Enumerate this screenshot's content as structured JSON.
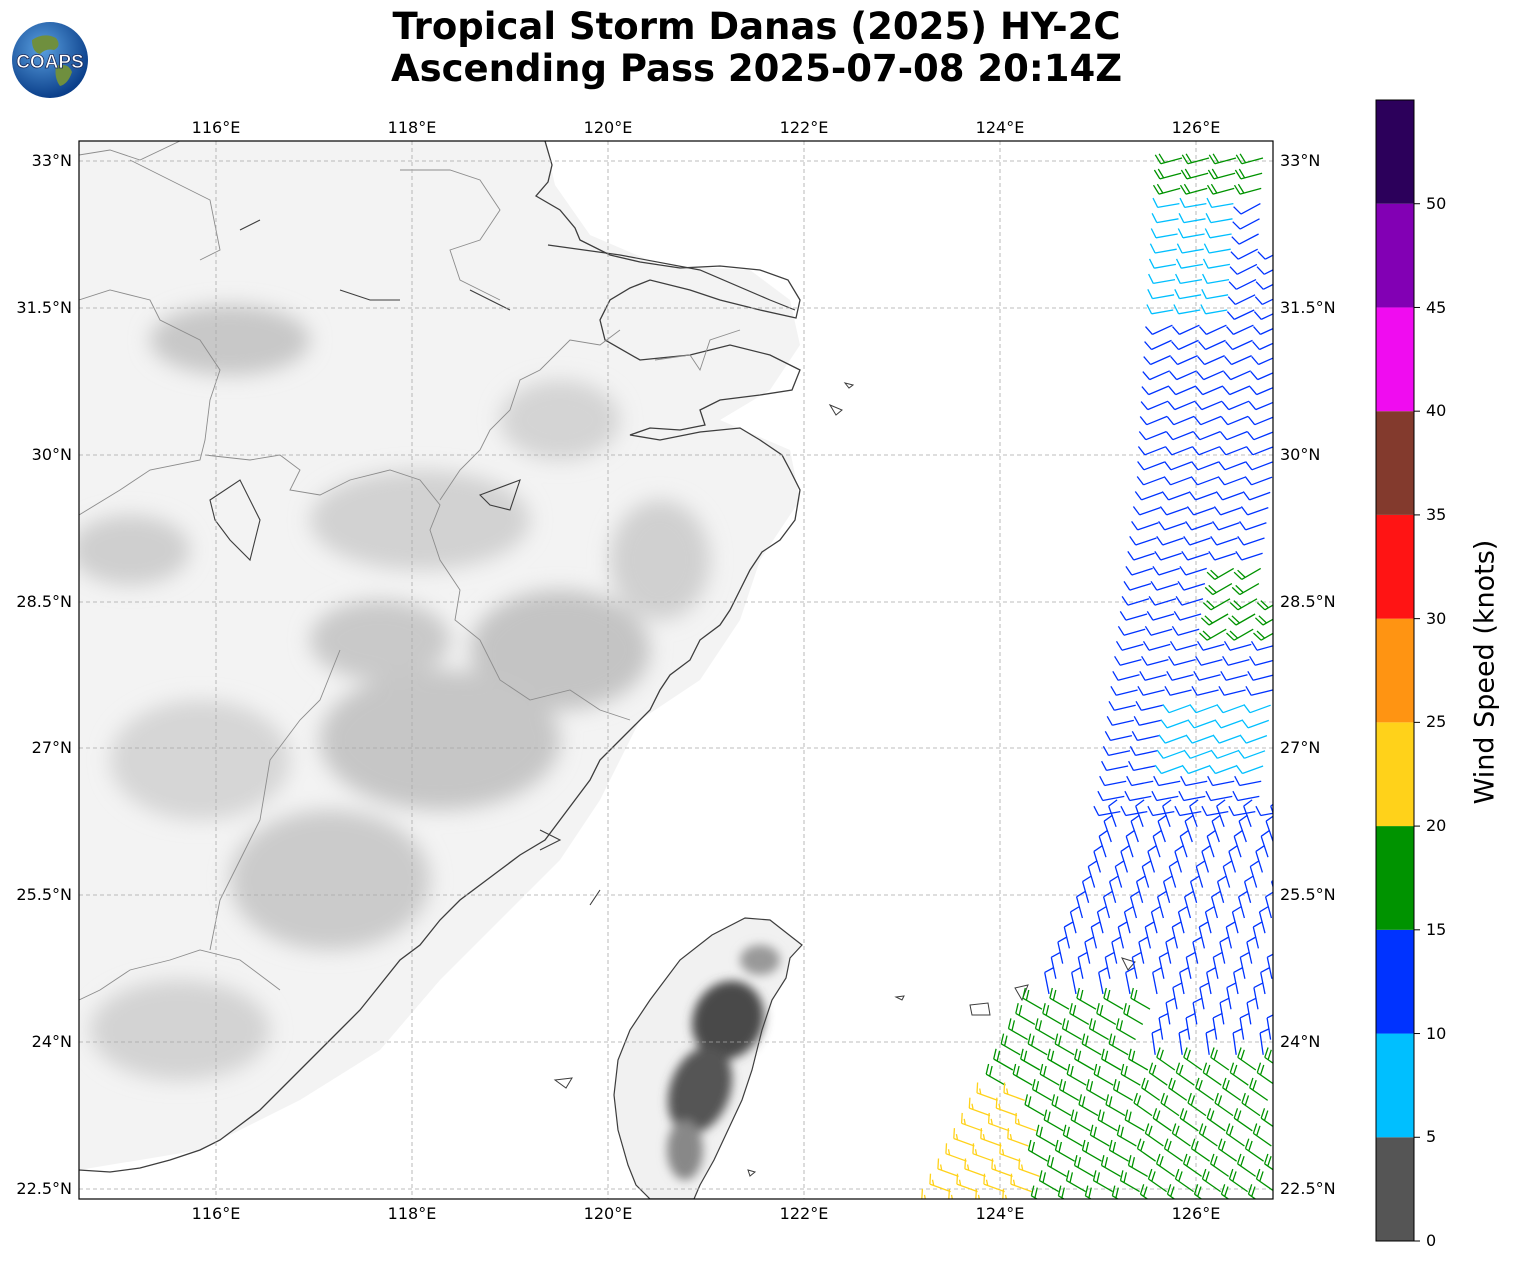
{
  "title": {
    "line1": "Tropical Storm Danas (2025) HY-2C",
    "line2": "Ascending Pass 2025-07-08 20:14Z"
  },
  "logo": {
    "text": "COAPS",
    "icon": "globe-icon"
  },
  "map": {
    "lon_range": [
      114.6,
      126.8
    ],
    "lat_range": [
      22.3,
      33.2
    ],
    "lon_ticks": [
      "116°E",
      "118°E",
      "120°E",
      "122°E",
      "124°E",
      "126°E"
    ],
    "lat_ticks": [
      "33°N",
      "31.5°N",
      "30°N",
      "28.5°N",
      "27°N",
      "25.5°N",
      "24°N",
      "22.5°N"
    ],
    "grid": true,
    "features": [
      "terrain-shading",
      "coastlines",
      "province-borders",
      "wind-barbs"
    ]
  },
  "colorbar": {
    "label": "Wind Speed (knots)",
    "ticks": [
      "0",
      "5",
      "10",
      "15",
      "20",
      "25",
      "30",
      "35",
      "40",
      "45",
      "50"
    ],
    "bins": [
      {
        "min": 0,
        "max": 5,
        "color": "#555555"
      },
      {
        "min": 5,
        "max": 10,
        "color": "#00bfff"
      },
      {
        "min": 10,
        "max": 15,
        "color": "#0033ff"
      },
      {
        "min": 15,
        "max": 20,
        "color": "#009300"
      },
      {
        "min": 20,
        "max": 25,
        "color": "#ffd21a"
      },
      {
        "min": 25,
        "max": 30,
        "color": "#ff9412"
      },
      {
        "min": 30,
        "max": 35,
        "color": "#ff1414"
      },
      {
        "min": 35,
        "max": 40,
        "color": "#833a2d"
      },
      {
        "min": 40,
        "max": 45,
        "color": "#f00cf0"
      },
      {
        "min": 45,
        "max": 50,
        "color": "#8200b4"
      },
      {
        "min": 50,
        "max": 55,
        "color": "#2c005b"
      }
    ]
  }
}
